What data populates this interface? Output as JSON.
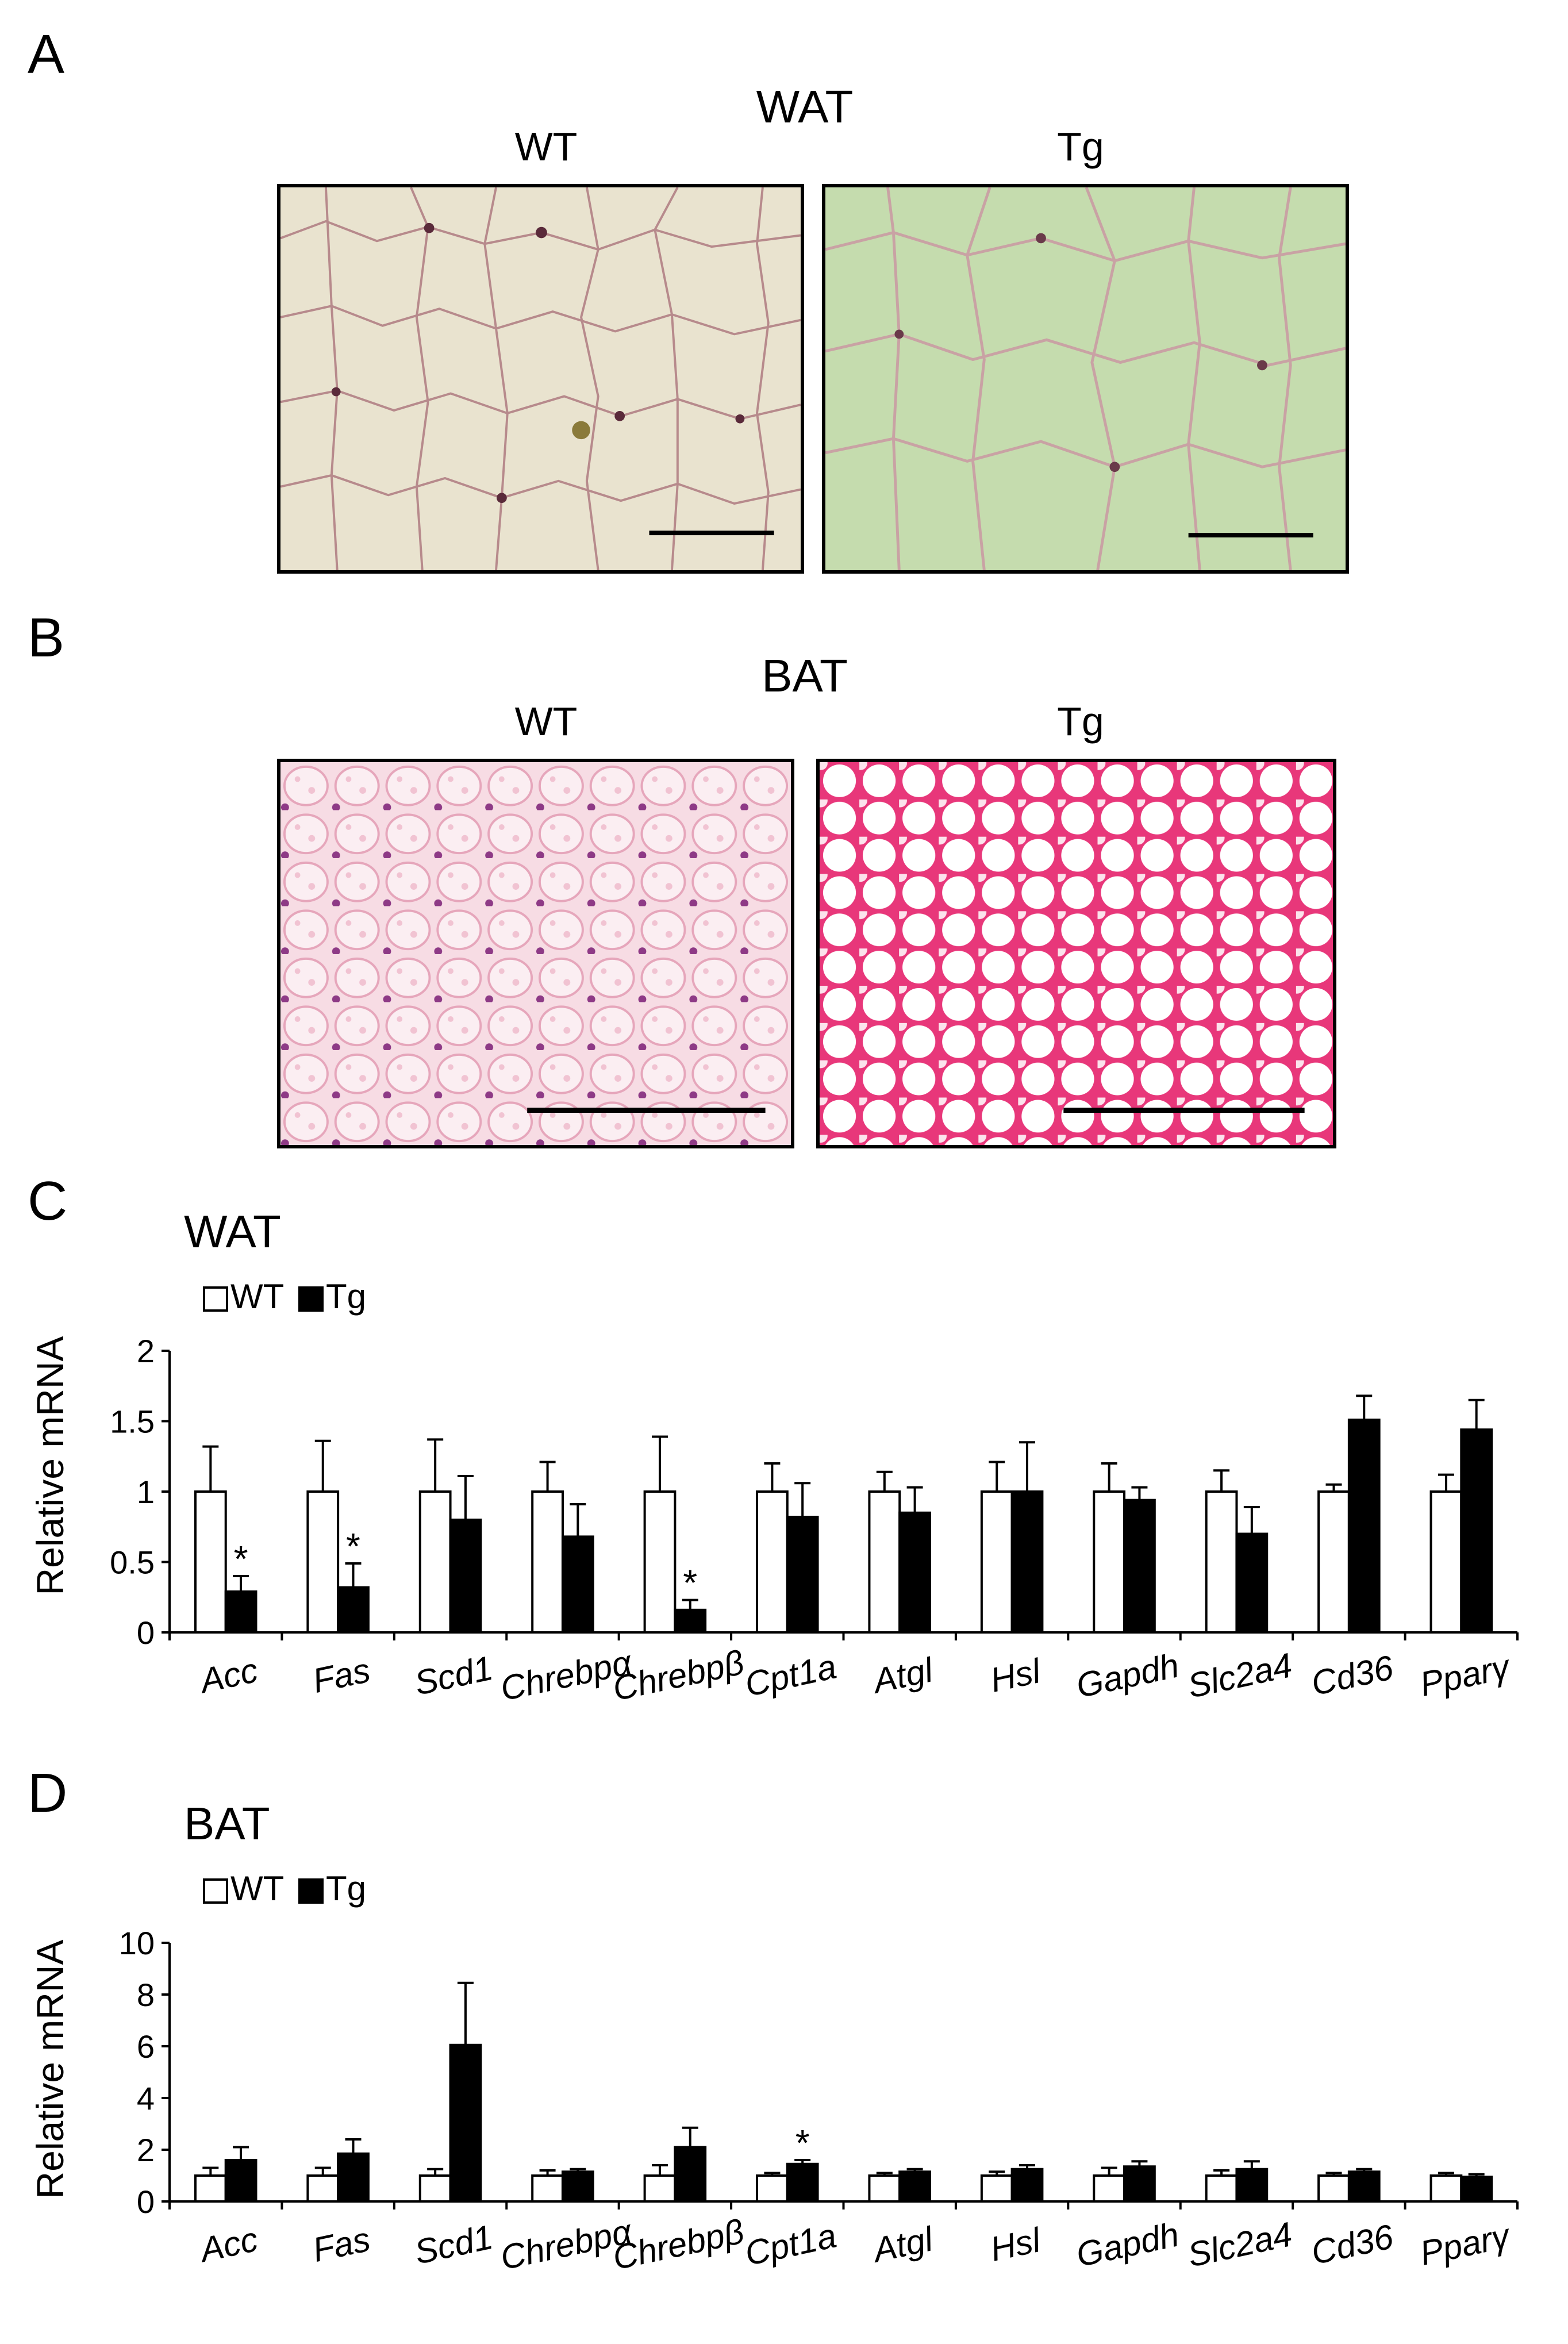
{
  "panels": {
    "A": {
      "letter": "A",
      "tissue": "WAT",
      "left_label": "WT",
      "right_label": "Tg"
    },
    "B": {
      "letter": "B",
      "tissue": "BAT",
      "left_label": "WT",
      "right_label": "Tg"
    },
    "C": {
      "letter": "C"
    },
    "D": {
      "letter": "D"
    }
  },
  "chart_data": [
    {
      "type": "bar",
      "title": "WAT",
      "ylabel": "Relative mRNA",
      "ylim": [
        0,
        2
      ],
      "yticks": [
        0,
        0.5,
        1,
        1.5,
        2
      ],
      "ytick_labels": [
        "0",
        "0.5",
        "1",
        "1.5",
        "2"
      ],
      "categories": [
        "Acc",
        "Fas",
        "Scd1",
        "Chrebpα",
        "Chrebpβ",
        "Cpt1a",
        "Atgl",
        "Hsl",
        "Gapdh",
        "Slc2a4",
        "Cd36",
        "Pparγ"
      ],
      "legend": {
        "position": "top-left",
        "entries": [
          "WT",
          "Tg"
        ]
      },
      "series": [
        {
          "name": "WT",
          "color": "#ffffff",
          "values": [
            1.0,
            1.0,
            1.0,
            1.0,
            1.0,
            1.0,
            1.0,
            1.0,
            1.0,
            1.0,
            1.0,
            1.0
          ],
          "errors": [
            0.32,
            0.36,
            0.37,
            0.21,
            0.39,
            0.2,
            0.14,
            0.21,
            0.2,
            0.15,
            0.05,
            0.12
          ]
        },
        {
          "name": "Tg",
          "color": "#000000",
          "values": [
            0.29,
            0.32,
            0.8,
            0.68,
            0.16,
            0.82,
            0.85,
            1.0,
            0.94,
            0.7,
            1.51,
            1.44
          ],
          "errors": [
            0.11,
            0.17,
            0.31,
            0.23,
            0.07,
            0.24,
            0.18,
            0.35,
            0.09,
            0.19,
            0.17,
            0.21
          ]
        }
      ],
      "significance": [
        {
          "category": "Acc",
          "series": "Tg",
          "label": "*"
        },
        {
          "category": "Fas",
          "series": "Tg",
          "label": "*"
        },
        {
          "category": "Chrebpβ",
          "series": "Tg",
          "label": "*"
        }
      ]
    },
    {
      "type": "bar",
      "title": "BAT",
      "ylabel": "Relative mRNA",
      "ylim": [
        0,
        10
      ],
      "yticks": [
        0,
        2,
        4,
        6,
        8,
        10
      ],
      "ytick_labels": [
        "0",
        "2",
        "4",
        "6",
        "8",
        "10"
      ],
      "categories": [
        "Acc",
        "Fas",
        "Scd1",
        "Chrebpα",
        "Chrebpβ",
        "Cpt1a",
        "Atgl",
        "Hsl",
        "Gapdh",
        "Slc2a4",
        "Cd36",
        "Pparγ"
      ],
      "legend": {
        "position": "top-left",
        "entries": [
          "WT",
          "Tg"
        ]
      },
      "series": [
        {
          "name": "WT",
          "color": "#ffffff",
          "values": [
            1.0,
            1.0,
            1.0,
            1.0,
            1.0,
            1.0,
            1.0,
            1.0,
            1.0,
            1.0,
            1.0,
            1.0
          ],
          "errors": [
            0.3,
            0.3,
            0.25,
            0.2,
            0.4,
            0.1,
            0.1,
            0.15,
            0.3,
            0.2,
            0.1,
            0.1
          ]
        },
        {
          "name": "Tg",
          "color": "#000000",
          "values": [
            1.6,
            1.85,
            6.05,
            1.15,
            2.1,
            1.45,
            1.15,
            1.25,
            1.35,
            1.25,
            1.15,
            0.95
          ],
          "errors": [
            0.5,
            0.55,
            2.4,
            0.1,
            0.75,
            0.15,
            0.1,
            0.15,
            0.2,
            0.3,
            0.1,
            0.1
          ]
        }
      ],
      "significance": [
        {
          "category": "Cpt1a",
          "series": "Tg",
          "label": "*"
        }
      ]
    }
  ]
}
